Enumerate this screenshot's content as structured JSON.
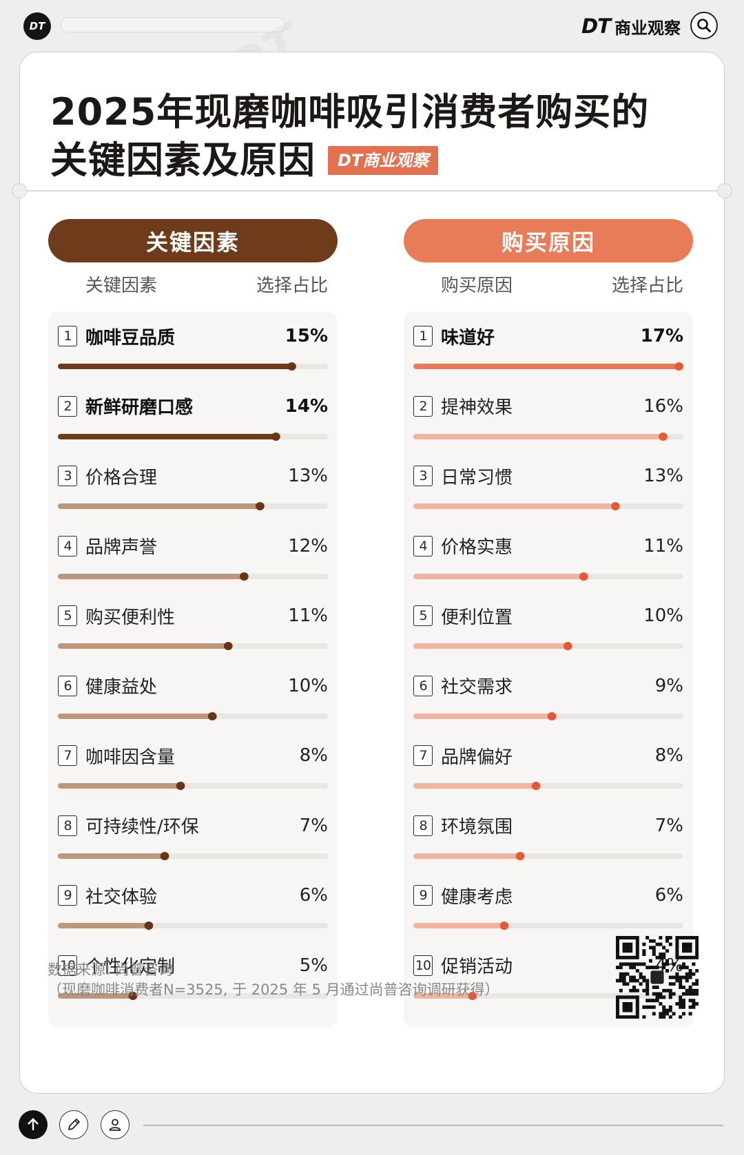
{
  "header": {
    "logo_text": "DT",
    "brand_dt": "DT",
    "brand_cn": "商业观察"
  },
  "title": {
    "line1": "2025年现磨咖啡吸引消费者购买的",
    "line2": "关键因素及原因",
    "stamp": "DT商业观察"
  },
  "colors": {
    "brown": "#6e3c1a",
    "brown_light": "#bd967c",
    "orange": "#e87c58",
    "orange_light": "#f0b4a1",
    "track": "#e9e7e4"
  },
  "chart_data": [
    {
      "type": "bar",
      "title": "关键因素",
      "xlabel": "关键因素",
      "ylabel": "选择占比",
      "ylim": [
        0,
        17
      ],
      "categories": [
        "咖啡豆品质",
        "新鲜研磨口感",
        "价格合理",
        "品牌声誉",
        "购买便利性",
        "健康益处",
        "咖啡因含量",
        "可持续性/环保",
        "社交体验",
        "个性化定制"
      ],
      "ranks": [
        "1",
        "2",
        "3",
        "4",
        "5",
        "6",
        "7",
        "8",
        "9",
        "10"
      ],
      "values": [
        15,
        14,
        13,
        12,
        11,
        10,
        8,
        7,
        6,
        5
      ],
      "labels": [
        "15%",
        "14%",
        "13%",
        "12%",
        "11%",
        "10%",
        "8%",
        "7%",
        "6%",
        "5%"
      ]
    },
    {
      "type": "bar",
      "title": "购买原因",
      "xlabel": "购买原因",
      "ylabel": "选择占比",
      "ylim": [
        0,
        17
      ],
      "categories": [
        "味道好",
        "提神效果",
        "日常习惯",
        "价格实惠",
        "便利位置",
        "社交需求",
        "品牌偏好",
        "环境氛围",
        "健康考虑",
        "促销活动"
      ],
      "ranks": [
        "1",
        "2",
        "3",
        "4",
        "5",
        "6",
        "7",
        "8",
        "9",
        "10"
      ],
      "values": [
        17,
        16,
        13,
        11,
        10,
        9,
        8,
        7,
        6,
        4
      ],
      "labels": [
        "17%",
        "16%",
        "13%",
        "11%",
        "10%",
        "9%",
        "8%",
        "7%",
        "6%",
        "4%"
      ]
    }
  ],
  "source": {
    "line1": "数据来源: 尚普咨询",
    "line2": "（现磨咖啡消费者N=3525, 于 2025 年 5 月通过尚普咨询调研获得）"
  }
}
